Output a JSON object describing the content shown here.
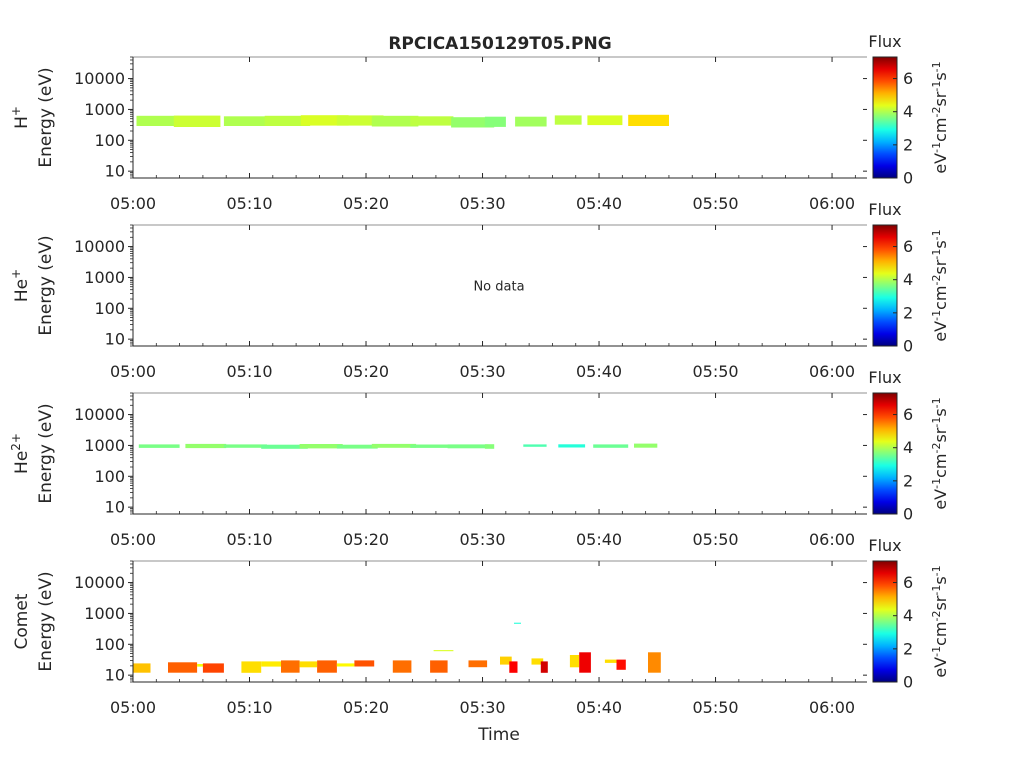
{
  "title": "RPCICA150129T05.PNG",
  "xlabel": "Time",
  "x_ticks": [
    "05:00",
    "05:10",
    "05:20",
    "05:30",
    "05:40",
    "05:50",
    "06:00"
  ],
  "y_ticks": [
    "10",
    "100",
    "1000",
    "10000"
  ],
  "colorbar": {
    "title": "Flux",
    "ticks": [
      "0",
      "2",
      "4",
      "6"
    ],
    "label": "eV-1cm-2sr-1s-1",
    "label_parts": [
      "eV",
      "-1",
      "cm",
      "-2",
      "sr",
      "-1",
      "s",
      "-1"
    ],
    "range": [
      0,
      7.3
    ]
  },
  "chart_data": [
    {
      "type": "heatmap",
      "ylabel_species": "H",
      "ylabel_species_sup": "+",
      "ylabel_axis": "Energy (eV)",
      "x_range_min": [
        0,
        63
      ],
      "y_log_range": [
        6,
        50000
      ],
      "scan_times_min": [
        1.5,
        5.0,
        8.5,
        12.0,
        15.5,
        19.0,
        22.5,
        26.0,
        29.5,
        31.5,
        34.0,
        37.5,
        40.5,
        44.5
      ],
      "cells": [
        {
          "t0": 0.3,
          "t1": 4.0,
          "e0": 290,
          "e1": 620,
          "v": 4.0
        },
        {
          "t0": 3.5,
          "t1": 7.5,
          "e0": 270,
          "e1": 630,
          "v": 4.2
        },
        {
          "t0": 7.8,
          "t1": 11.5,
          "e0": 290,
          "e1": 600,
          "v": 4.0
        },
        {
          "t0": 11.3,
          "t1": 15.2,
          "e0": 290,
          "e1": 620,
          "v": 4.1
        },
        {
          "t0": 14.4,
          "t1": 18.5,
          "e0": 300,
          "e1": 650,
          "v": 4.3
        },
        {
          "t0": 17.5,
          "t1": 21.5,
          "e0": 300,
          "e1": 640,
          "v": 4.2
        },
        {
          "t0": 20.5,
          "t1": 24.5,
          "e0": 280,
          "e1": 620,
          "v": 4.0
        },
        {
          "t0": 23.8,
          "t1": 27.5,
          "e0": 300,
          "e1": 600,
          "v": 4.1
        },
        {
          "t0": 27.3,
          "t1": 31.0,
          "e0": 260,
          "e1": 560,
          "v": 3.8
        },
        {
          "t0": 30.2,
          "t1": 32.0,
          "e0": 270,
          "e1": 580,
          "v": 3.7
        },
        {
          "t0": 32.8,
          "t1": 35.5,
          "e0": 280,
          "e1": 580,
          "v": 3.9
        },
        {
          "t0": 36.2,
          "t1": 38.5,
          "e0": 320,
          "e1": 640,
          "v": 4.1
        },
        {
          "t0": 39.0,
          "t1": 42.0,
          "e0": 310,
          "e1": 640,
          "v": 4.3
        },
        {
          "t0": 42.5,
          "t1": 46.0,
          "e0": 290,
          "e1": 670,
          "v": 4.8
        }
      ]
    },
    {
      "type": "heatmap",
      "ylabel_species": "He",
      "ylabel_species_sup": "+",
      "ylabel_axis": "Energy (eV)",
      "x_range_min": [
        0,
        63
      ],
      "y_log_range": [
        6,
        50000
      ],
      "annotation": "No data",
      "cells": []
    },
    {
      "type": "heatmap",
      "ylabel_species": "He",
      "ylabel_species_sup": "2+",
      "ylabel_axis": "Energy (eV)",
      "x_range_min": [
        0,
        63
      ],
      "y_log_range": [
        6,
        50000
      ],
      "cells": [
        {
          "t0": 0.5,
          "t1": 4.0,
          "e0": 830,
          "e1": 1080,
          "v": 3.6
        },
        {
          "t0": 4.5,
          "t1": 8.0,
          "e0": 820,
          "e1": 1120,
          "v": 3.8
        },
        {
          "t0": 7.8,
          "t1": 11.5,
          "e0": 840,
          "e1": 1080,
          "v": 3.6
        },
        {
          "t0": 11.0,
          "t1": 15.0,
          "e0": 780,
          "e1": 1060,
          "v": 3.5
        },
        {
          "t0": 14.3,
          "t1": 18.0,
          "e0": 800,
          "e1": 1110,
          "v": 3.8
        },
        {
          "t0": 17.5,
          "t1": 21.0,
          "e0": 790,
          "e1": 1060,
          "v": 3.6
        },
        {
          "t0": 20.5,
          "t1": 24.3,
          "e0": 840,
          "e1": 1120,
          "v": 3.8
        },
        {
          "t0": 23.8,
          "t1": 27.5,
          "e0": 830,
          "e1": 1070,
          "v": 3.6
        },
        {
          "t0": 27.0,
          "t1": 30.5,
          "e0": 810,
          "e1": 1080,
          "v": 3.6
        },
        {
          "t0": 30.2,
          "t1": 31.0,
          "e0": 780,
          "e1": 1100,
          "v": 3.7
        },
        {
          "t0": 33.5,
          "t1": 35.5,
          "e0": 900,
          "e1": 1080,
          "v": 3.3
        },
        {
          "t0": 36.5,
          "t1": 38.8,
          "e0": 860,
          "e1": 1090,
          "v": 3.0
        },
        {
          "t0": 39.5,
          "t1": 42.5,
          "e0": 840,
          "e1": 1080,
          "v": 3.5
        },
        {
          "t0": 43.0,
          "t1": 45.0,
          "e0": 850,
          "e1": 1150,
          "v": 3.8
        }
      ]
    },
    {
      "type": "heatmap",
      "ylabel_species": "Comet",
      "ylabel_species_sup": "",
      "ylabel_axis": "Energy (eV)",
      "x_range_min": [
        0,
        63
      ],
      "y_log_range": [
        6,
        50000
      ],
      "cells": [
        {
          "t0": 0.0,
          "t1": 1.5,
          "e0": 12,
          "e1": 24,
          "v": 5.0
        },
        {
          "t0": 3.0,
          "t1": 5.5,
          "e0": 12,
          "e1": 26,
          "v": 5.7
        },
        {
          "t0": 5.5,
          "t1": 7.0,
          "e0": 19,
          "e1": 23,
          "v": 4.5
        },
        {
          "t0": 6.0,
          "t1": 7.8,
          "e0": 12,
          "e1": 24,
          "v": 5.9
        },
        {
          "t0": 9.3,
          "t1": 11.0,
          "e0": 12,
          "e1": 28,
          "v": 4.8
        },
        {
          "t0": 11.0,
          "t1": 13.0,
          "e0": 19,
          "e1": 28,
          "v": 4.7
        },
        {
          "t0": 12.7,
          "t1": 14.3,
          "e0": 12,
          "e1": 30,
          "v": 5.6
        },
        {
          "t0": 14.3,
          "t1": 15.8,
          "e0": 18,
          "e1": 28,
          "v": 4.8
        },
        {
          "t0": 15.8,
          "t1": 17.5,
          "e0": 12,
          "e1": 30,
          "v": 5.7
        },
        {
          "t0": 17.5,
          "t1": 19.0,
          "e0": 19,
          "e1": 24,
          "v": 4.6
        },
        {
          "t0": 19.0,
          "t1": 20.7,
          "e0": 19,
          "e1": 30,
          "v": 5.8
        },
        {
          "t0": 22.3,
          "t1": 23.9,
          "e0": 12,
          "e1": 30,
          "v": 5.6
        },
        {
          "t0": 25.5,
          "t1": 27.0,
          "e0": 12,
          "e1": 30,
          "v": 5.7
        },
        {
          "t0": 25.8,
          "t1": 27.5,
          "e0": 60,
          "e1": 65,
          "v": 4.3
        },
        {
          "t0": 28.8,
          "t1": 30.4,
          "e0": 18,
          "e1": 30,
          "v": 5.6
        },
        {
          "t0": 31.5,
          "t1": 32.5,
          "e0": 22,
          "e1": 40,
          "v": 4.9
        },
        {
          "t0": 32.3,
          "t1": 33.0,
          "e0": 12,
          "e1": 28,
          "v": 6.4
        },
        {
          "t0": 32.7,
          "t1": 33.3,
          "e0": 460,
          "e1": 500,
          "v": 3.0
        },
        {
          "t0": 34.2,
          "t1": 35.2,
          "e0": 22,
          "e1": 35,
          "v": 4.8
        },
        {
          "t0": 35.0,
          "t1": 35.6,
          "e0": 12,
          "e1": 28,
          "v": 6.7
        },
        {
          "t0": 37.5,
          "t1": 38.3,
          "e0": 18,
          "e1": 45,
          "v": 4.8
        },
        {
          "t0": 38.3,
          "t1": 39.3,
          "e0": 12,
          "e1": 55,
          "v": 6.5
        },
        {
          "t0": 40.5,
          "t1": 41.5,
          "e0": 25,
          "e1": 32,
          "v": 4.8
        },
        {
          "t0": 41.5,
          "t1": 42.3,
          "e0": 15,
          "e1": 32,
          "v": 6.3
        },
        {
          "t0": 44.2,
          "t1": 45.3,
          "e0": 12,
          "e1": 55,
          "v": 5.4
        }
      ]
    }
  ]
}
